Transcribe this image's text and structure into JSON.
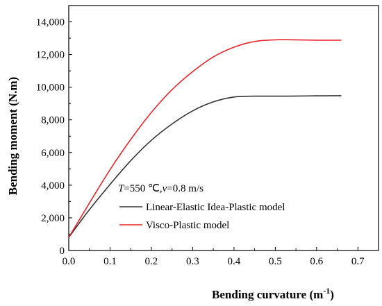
{
  "chart_data": {
    "type": "line",
    "title": "",
    "xlabel": "Bending curvature (m",
    "xlabel_sup": "-1",
    "xlabel_close": ")",
    "ylabel": "Bending moment (N.m)",
    "xlim": [
      0,
      0.75
    ],
    "ylim": [
      0,
      15000
    ],
    "x_ticks": [
      0.0,
      0.1,
      0.2,
      0.3,
      0.4,
      0.5,
      0.6,
      0.7
    ],
    "x_tick_labels": [
      "0.0",
      "0.1",
      "0.2",
      "0.3",
      "0.4",
      "0.5",
      "0.6",
      "0.7"
    ],
    "y_ticks": [
      0,
      2000,
      4000,
      6000,
      8000,
      10000,
      12000,
      14000
    ],
    "y_tick_labels": [
      "0",
      "2,000",
      "4,000",
      "6,000",
      "8,000",
      "10,000",
      "12,000",
      "14,000"
    ],
    "grid": false,
    "legend_position": "lower-right",
    "annotation": {
      "parts": [
        {
          "text": "T",
          "italic": true
        },
        {
          "text": "=550 ℃,",
          "italic": false
        },
        {
          "text": "v",
          "italic": true
        },
        {
          "text": "=0.8 m/s",
          "italic": false
        }
      ]
    },
    "series": [
      {
        "name": "Linear-Elastic Idea-Plastic model",
        "color": "#333333",
        "x": [
          0.0,
          0.05,
          0.1,
          0.15,
          0.2,
          0.25,
          0.3,
          0.35,
          0.4,
          0.45,
          0.5,
          0.55,
          0.6,
          0.65,
          0.66
        ],
        "y": [
          800,
          2500,
          4050,
          5500,
          6750,
          7750,
          8550,
          9100,
          9400,
          9450,
          9450,
          9460,
          9470,
          9480,
          9480
        ]
      },
      {
        "name": "Visco-Plastic model",
        "color": "#e8262a",
        "x": [
          0.0,
          0.05,
          0.1,
          0.15,
          0.2,
          0.25,
          0.3,
          0.35,
          0.4,
          0.45,
          0.5,
          0.55,
          0.6,
          0.65,
          0.66
        ],
        "y": [
          800,
          2900,
          4950,
          6800,
          8450,
          9850,
          10950,
          11850,
          12450,
          12800,
          12900,
          12900,
          12880,
          12880,
          12880
        ]
      }
    ]
  }
}
